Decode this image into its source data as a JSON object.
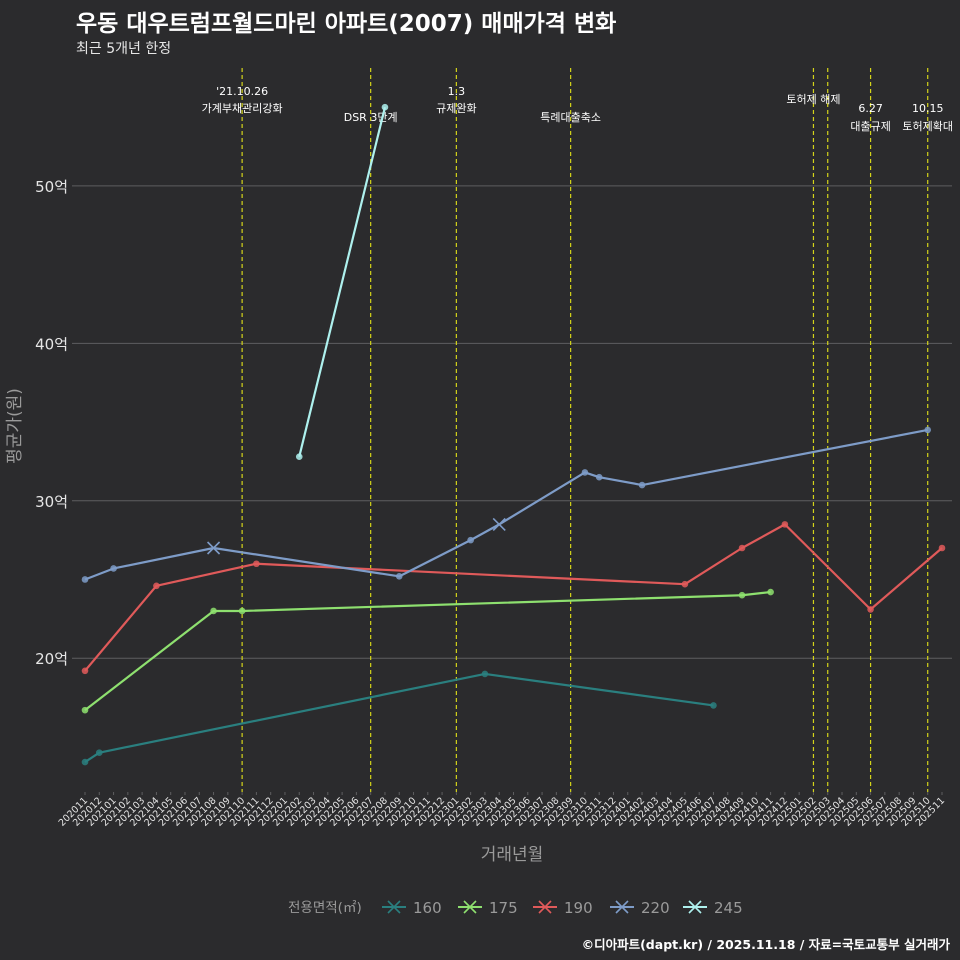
{
  "title": "우동 대우트럼프월드마린 아파트(2007) 매매가격 변화",
  "subtitle": "최근 5개년 한정",
  "caption": "©디아파트(dapt.kr) / 2025.11.18 / 자료=국토교통부 실거래가",
  "colors": {
    "background": "#2b2b2d",
    "grid": "#5e5e60",
    "text": "#e6e6e6",
    "axis_title": "#9a9a9a",
    "event_line": "#d4d41a"
  },
  "chart_data": {
    "type": "line",
    "title": "우동 대우트럼프월드마린 아파트(2007) 매매가격 변화",
    "xlabel": "거래년월",
    "ylabel": "평균가(원)",
    "categories": [
      "202011",
      "202012",
      "202101",
      "202102",
      "202103",
      "202104",
      "202105",
      "202106",
      "202107",
      "202108",
      "202109",
      "202110",
      "202111",
      "202112",
      "202201",
      "202202",
      "202203",
      "202204",
      "202205",
      "202206",
      "202207",
      "202208",
      "202209",
      "202210",
      "202211",
      "202212",
      "202301",
      "202302",
      "202303",
      "202304",
      "202305",
      "202306",
      "202307",
      "202308",
      "202309",
      "202310",
      "202311",
      "202312",
      "202401",
      "202402",
      "202403",
      "202404",
      "202405",
      "202406",
      "202407",
      "202408",
      "202409",
      "202410",
      "202411",
      "202412",
      "202501",
      "202502",
      "202503",
      "202504",
      "202505",
      "202506",
      "202507",
      "202508",
      "202509",
      "202510",
      "202511"
    ],
    "ylim": [
      11.5,
      58
    ],
    "yticks": [
      {
        "value": 20,
        "label": "20억"
      },
      {
        "value": 30,
        "label": "30억"
      },
      {
        "value": 40,
        "label": "40억"
      },
      {
        "value": 50,
        "label": "50억"
      }
    ],
    "legend": {
      "title": "전용면적(㎡)",
      "position": "bottom"
    },
    "series": [
      {
        "name": "160",
        "color": "#2a7f7f",
        "points": [
          [
            "202011",
            13.4
          ],
          [
            "202012",
            14.0
          ],
          [
            "202303",
            19.0
          ],
          [
            "202407",
            17.0
          ]
        ],
        "cross_at": []
      },
      {
        "name": "175",
        "color": "#8ee06f",
        "points": [
          [
            "202011",
            16.7
          ],
          [
            "202108",
            23.0
          ],
          [
            "202110",
            23.0
          ],
          [
            "202409",
            24.0
          ],
          [
            "202411",
            24.2
          ]
        ],
        "cross_at": []
      },
      {
        "name": "190",
        "color": "#e05a5a",
        "points": [
          [
            "202011",
            19.2
          ],
          [
            "202104",
            24.6
          ],
          [
            "202111",
            26.0
          ],
          [
            "202405",
            24.7
          ],
          [
            "202409",
            27.0
          ],
          [
            "202412",
            28.5
          ],
          [
            "202506",
            23.1
          ],
          [
            "202511",
            27.0
          ]
        ],
        "cross_at": []
      },
      {
        "name": "220",
        "color": "#7e9cc8",
        "points": [
          [
            "202011",
            25.0
          ],
          [
            "202101",
            25.7
          ],
          [
            "202108",
            27.0
          ],
          [
            "202209",
            25.2
          ],
          [
            "202302",
            27.5
          ],
          [
            "202304",
            28.5
          ],
          [
            "202310",
            31.8
          ],
          [
            "202311",
            31.5
          ],
          [
            "202402",
            31.0
          ],
          [
            "202510",
            34.5
          ]
        ],
        "cross_at": [
          "202108",
          "202304"
        ]
      },
      {
        "name": "245",
        "color": "#aef1ee",
        "points": [
          [
            "202202",
            32.8
          ],
          [
            "202208",
            55.0
          ]
        ],
        "cross_at": []
      }
    ],
    "events": [
      {
        "at": "202110",
        "label": "'21.10.26",
        "label2": "가계부채관리강화"
      },
      {
        "at": "202207",
        "label": "DSR 3단계",
        "label2": ""
      },
      {
        "at": "202301",
        "label": "1.3",
        "label2": "규제완화"
      },
      {
        "at": "202309",
        "label": "특례대출축소",
        "label2": ""
      },
      {
        "at": "202502",
        "label": "토허제 해제",
        "label2": ""
      },
      {
        "at": "202503",
        "label": "",
        "label2": ""
      },
      {
        "at": "202506",
        "label": "6.27",
        "label2": "대출규제"
      },
      {
        "at": "202510",
        "label": "10.15",
        "label2": "토허제확대"
      }
    ]
  }
}
